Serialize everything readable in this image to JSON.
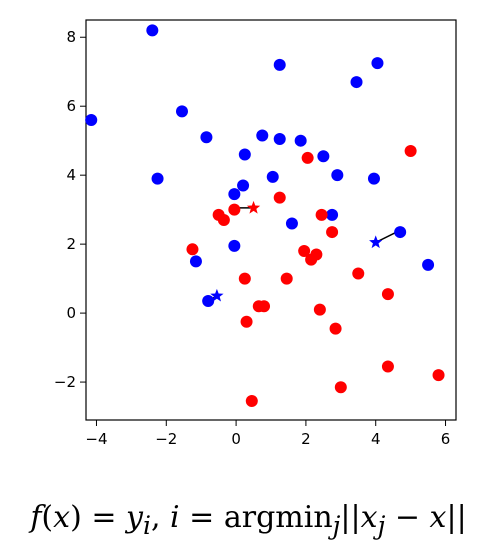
{
  "chart_data": {
    "type": "scatter",
    "xlim": [
      -4.3,
      6.3
    ],
    "ylim": [
      -3.1,
      8.5
    ],
    "xticks": [
      -4,
      -2,
      0,
      2,
      4,
      6
    ],
    "yticks": [
      -2,
      0,
      2,
      4,
      6,
      8
    ],
    "xtick_labels": [
      "−4",
      "−2",
      "0",
      "2",
      "4",
      "6"
    ],
    "ytick_labels": [
      "−2",
      "0",
      "2",
      "4",
      "6",
      "8"
    ],
    "grid": false,
    "colors": {
      "blue": "#0000ff",
      "red": "#ff0000",
      "line": "#000000"
    },
    "series": [
      {
        "color": "blue",
        "points": [
          [
            -2.4,
            8.2
          ],
          [
            1.25,
            7.2
          ],
          [
            4.05,
            7.25
          ],
          [
            3.45,
            6.7
          ],
          [
            -4.15,
            5.6
          ],
          [
            -1.55,
            5.85
          ],
          [
            -0.85,
            5.1
          ],
          [
            0.75,
            5.15
          ],
          [
            1.25,
            5.05
          ],
          [
            1.85,
            5.0
          ],
          [
            0.25,
            4.6
          ],
          [
            2.5,
            4.55
          ],
          [
            -2.25,
            3.9
          ],
          [
            1.05,
            3.95
          ],
          [
            2.9,
            4.0
          ],
          [
            3.95,
            3.9
          ],
          [
            0.2,
            3.7
          ],
          [
            -0.05,
            3.45
          ],
          [
            1.6,
            2.6
          ],
          [
            2.75,
            2.85
          ],
          [
            4.7,
            2.35
          ],
          [
            -0.05,
            1.95
          ],
          [
            -1.15,
            1.5
          ],
          [
            5.5,
            1.4
          ],
          [
            -0.8,
            0.35
          ]
        ]
      },
      {
        "color": "red",
        "points": [
          [
            5.0,
            4.7
          ],
          [
            2.05,
            4.5
          ],
          [
            1.25,
            3.35
          ],
          [
            -0.5,
            2.85
          ],
          [
            -0.05,
            3.0
          ],
          [
            -0.35,
            2.7
          ],
          [
            2.45,
            2.85
          ],
          [
            2.75,
            2.35
          ],
          [
            -1.25,
            1.85
          ],
          [
            1.95,
            1.8
          ],
          [
            2.3,
            1.7
          ],
          [
            2.15,
            1.55
          ],
          [
            3.5,
            1.15
          ],
          [
            0.25,
            1.0
          ],
          [
            1.45,
            1.0
          ],
          [
            4.35,
            0.55
          ],
          [
            0.65,
            0.2
          ],
          [
            0.8,
            0.2
          ],
          [
            2.4,
            0.1
          ],
          [
            0.3,
            -0.25
          ],
          [
            2.85,
            -0.45
          ],
          [
            4.35,
            -1.55
          ],
          [
            5.8,
            -1.8
          ],
          [
            3.0,
            -2.15
          ],
          [
            0.45,
            -2.55
          ]
        ]
      }
    ],
    "queries": [
      {
        "color": "red",
        "star": [
          0.5,
          3.05
        ],
        "nearest": [
          -0.05,
          3.05
        ]
      },
      {
        "color": "blue",
        "star": [
          4.0,
          2.05
        ],
        "nearest": [
          4.7,
          2.4
        ]
      },
      {
        "color": "blue",
        "star": [
          -0.55,
          0.5
        ],
        "nearest": [
          -0.8,
          0.35
        ]
      }
    ]
  },
  "formula": {
    "f": "f",
    "x1": "x",
    "eq": " = ",
    "y": "y",
    "i_sub": "i",
    "comma": ", ",
    "i": "i",
    "eq2": " = argmin",
    "j_sub": "j",
    "bars_open": "||",
    "x2": "x",
    "j_sub2": "j",
    "minus": " − ",
    "x3": "x",
    "bars_close": "||"
  }
}
